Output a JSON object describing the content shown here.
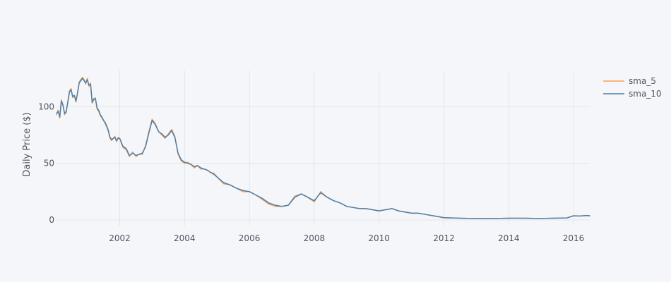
{
  "chart_data": {
    "type": "line",
    "title": "",
    "xlabel": "",
    "ylabel": "Daily Price ($)",
    "xlim": [
      2000.05,
      2016.5
    ],
    "ylim": [
      -5,
      132
    ],
    "x_ticks": [
      2002,
      2004,
      2006,
      2008,
      2010,
      2012,
      2014,
      2016
    ],
    "y_ticks": [
      0,
      50,
      100
    ],
    "grid": true,
    "legend_position": "top-right",
    "colors": {
      "sma_5": "#f5a253",
      "sma_10": "#4a7fae"
    },
    "series": [
      {
        "name": "sma_5",
        "color": "#f5a253",
        "x": [
          2000.05,
          2000.1,
          2000.15,
          2000.2,
          2000.25,
          2000.3,
          2000.35,
          2000.4,
          2000.45,
          2000.5,
          2000.55,
          2000.6,
          2000.65,
          2000.7,
          2000.75,
          2000.8,
          2000.85,
          2000.9,
          2000.95,
          2001.0,
          2001.05,
          2001.1,
          2001.15,
          2001.2,
          2001.25,
          2001.3,
          2001.35,
          2001.4,
          2001.45,
          2001.5,
          2001.55,
          2001.6,
          2001.65,
          2001.7,
          2001.75,
          2001.8,
          2001.85,
          2001.9,
          2001.95,
          2002.0,
          2002.1,
          2002.2,
          2002.3,
          2002.4,
          2002.5,
          2002.6,
          2002.7,
          2002.8,
          2002.9,
          2003.0,
          2003.1,
          2003.2,
          2003.3,
          2003.4,
          2003.5,
          2003.6,
          2003.7,
          2003.8,
          2003.9,
          2004.0,
          2004.1,
          2004.2,
          2004.3,
          2004.4,
          2004.5,
          2004.6,
          2004.7,
          2004.8,
          2004.9,
          2005.0,
          2005.2,
          2005.4,
          2005.6,
          2005.8,
          2006.0,
          2006.2,
          2006.4,
          2006.6,
          2006.8,
          2007.0,
          2007.2,
          2007.4,
          2007.6,
          2007.8,
          2008.0,
          2008.2,
          2008.4,
          2008.6,
          2008.8,
          2009.0,
          2009.2,
          2009.4,
          2009.6,
          2009.8,
          2010.0,
          2010.2,
          2010.4,
          2010.6,
          2010.8,
          2011.0,
          2011.2,
          2011.4,
          2011.6,
          2011.8,
          2012.0,
          2012.5,
          2013.0,
          2013.5,
          2014.0,
          2014.5,
          2015.0,
          2015.5,
          2015.8,
          2016.0,
          2016.2,
          2016.4,
          2016.5
        ],
        "y": [
          93,
          97,
          90,
          106,
          102,
          93,
          95,
          105,
          114,
          116,
          108,
          110,
          104,
          113,
          122,
          124,
          126,
          124,
          120,
          125,
          118,
          121,
          103,
          106,
          108,
          98,
          96,
          92,
          90,
          88,
          85,
          82,
          78,
          72,
          70,
          72,
          74,
          69,
          73,
          72,
          64,
          62,
          56,
          60,
          56,
          58,
          58,
          66,
          78,
          89,
          85,
          78,
          75,
          72,
          76,
          80,
          74,
          58,
          52,
          50,
          51,
          49,
          46,
          48,
          45,
          45,
          44,
          42,
          40,
          38,
          32,
          31,
          28,
          25,
          25,
          22,
          18,
          14,
          12,
          12,
          13,
          21,
          23,
          20,
          16,
          25,
          20,
          17,
          15,
          12,
          11,
          10,
          10,
          9,
          8,
          9,
          10,
          8,
          7,
          6,
          6,
          5,
          4,
          3,
          2,
          1.5,
          1.2,
          1.2,
          1.5,
          1.5,
          1.3,
          1.6,
          1.8,
          3.8,
          3.5,
          4,
          3.6
        ]
      },
      {
        "name": "sma_10",
        "color": "#4a7fae",
        "x": [
          2000.05,
          2000.1,
          2000.15,
          2000.2,
          2000.25,
          2000.3,
          2000.35,
          2000.4,
          2000.45,
          2000.5,
          2000.55,
          2000.6,
          2000.65,
          2000.7,
          2000.75,
          2000.8,
          2000.85,
          2000.9,
          2000.95,
          2001.0,
          2001.05,
          2001.1,
          2001.15,
          2001.2,
          2001.25,
          2001.3,
          2001.35,
          2001.4,
          2001.45,
          2001.5,
          2001.55,
          2001.6,
          2001.65,
          2001.7,
          2001.75,
          2001.8,
          2001.85,
          2001.9,
          2001.95,
          2002.0,
          2002.1,
          2002.2,
          2002.3,
          2002.4,
          2002.5,
          2002.6,
          2002.7,
          2002.8,
          2002.9,
          2003.0,
          2003.1,
          2003.2,
          2003.3,
          2003.4,
          2003.5,
          2003.6,
          2003.7,
          2003.8,
          2003.9,
          2004.0,
          2004.1,
          2004.2,
          2004.3,
          2004.4,
          2004.5,
          2004.6,
          2004.7,
          2004.8,
          2004.9,
          2005.0,
          2005.2,
          2005.4,
          2005.6,
          2005.8,
          2006.0,
          2006.2,
          2006.4,
          2006.6,
          2006.8,
          2007.0,
          2007.2,
          2007.4,
          2007.6,
          2007.8,
          2008.0,
          2008.2,
          2008.4,
          2008.6,
          2008.8,
          2009.0,
          2009.2,
          2009.4,
          2009.6,
          2009.8,
          2010.0,
          2010.2,
          2010.4,
          2010.6,
          2010.8,
          2011.0,
          2011.2,
          2011.4,
          2011.6,
          2011.8,
          2012.0,
          2012.5,
          2013.0,
          2013.5,
          2014.0,
          2014.5,
          2015.0,
          2015.5,
          2015.8,
          2016.0,
          2016.2,
          2016.4,
          2016.5
        ],
        "y": [
          94,
          96,
          91,
          105,
          101,
          94,
          96,
          104,
          113,
          115,
          109,
          110,
          105,
          112,
          121,
          123,
          125,
          123,
          121,
          124,
          119,
          120,
          104,
          107,
          107,
          99,
          97,
          93,
          91,
          88,
          86,
          83,
          79,
          73,
          71,
          72,
          73,
          70,
          72,
          72,
          65,
          63,
          57,
          59,
          57,
          58,
          59,
          65,
          77,
          88,
          84,
          78,
          76,
          73,
          75,
          79,
          73,
          59,
          53,
          51,
          50,
          49,
          47,
          48,
          46,
          45,
          44,
          42,
          41,
          38,
          33,
          31,
          28,
          26,
          25,
          22,
          19,
          15,
          13,
          12,
          13,
          20,
          23,
          20,
          17,
          24,
          20,
          17,
          15,
          12,
          11,
          10,
          10,
          9,
          8,
          9,
          10,
          8,
          7,
          6,
          6,
          5,
          4,
          3,
          2,
          1.5,
          1.2,
          1.2,
          1.5,
          1.5,
          1.3,
          1.6,
          1.8,
          3.6,
          3.5,
          3.9,
          3.7
        ]
      }
    ]
  }
}
